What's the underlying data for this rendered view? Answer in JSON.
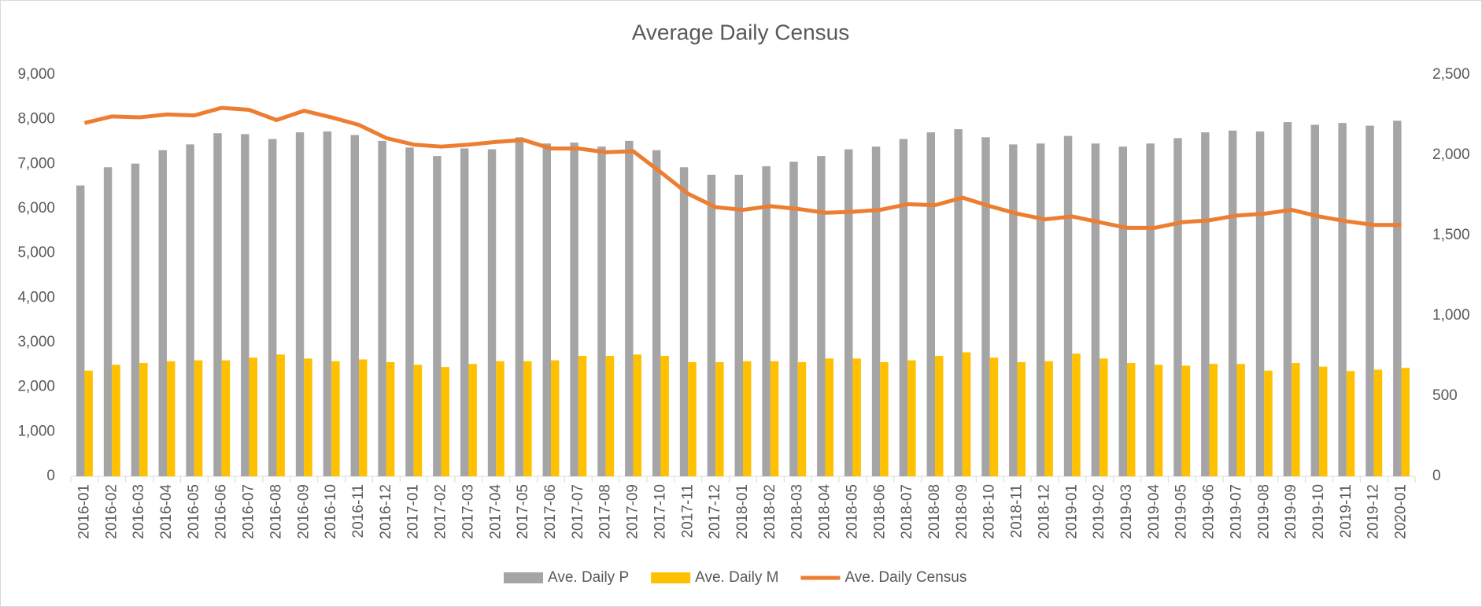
{
  "chart_data": {
    "type": "bar",
    "title": "Average Daily Census",
    "categories": [
      "2016-01",
      "2016-02",
      "2016-03",
      "2016-04",
      "2016-05",
      "2016-06",
      "2016-07",
      "2016-08",
      "2016-09",
      "2016-10",
      "2016-11",
      "2016-12",
      "2017-01",
      "2017-02",
      "2017-03",
      "2017-04",
      "2017-05",
      "2017-06",
      "2017-07",
      "2017-08",
      "2017-09",
      "2017-10",
      "2017-11",
      "2017-12",
      "2018-01",
      "2018-02",
      "2018-03",
      "2018-04",
      "2018-05",
      "2018-06",
      "2018-07",
      "2018-08",
      "2018-09",
      "2018-10",
      "2018-11",
      "2018-12",
      "2019-01",
      "2019-02",
      "2019-03",
      "2019-04",
      "2019-05",
      "2019-06",
      "2019-07",
      "2019-08",
      "2019-09",
      "2019-10",
      "2019-11",
      "2019-12",
      "2020-01"
    ],
    "series": [
      {
        "name": "Ave. Daily P",
        "color": "#a5a5a5",
        "values": [
          6520,
          6930,
          7010,
          7310,
          7440,
          7690,
          7670,
          7560,
          7710,
          7730,
          7650,
          7520,
          7370,
          7180,
          7350,
          7330,
          7600,
          7460,
          7480,
          7390,
          7520,
          7310,
          6930,
          6760,
          6760,
          6950,
          7050,
          7180,
          7330,
          7390,
          7560,
          7710,
          7780,
          7600,
          7440,
          7460,
          7630,
          7460,
          7390,
          7460,
          7580,
          7710,
          7750,
          7730,
          7940,
          7880,
          7920,
          7860,
          7970
        ]
      },
      {
        "name": "Ave. Daily M",
        "color": "#ffc000",
        "values": [
          2370,
          2500,
          2540,
          2580,
          2600,
          2600,
          2660,
          2730,
          2640,
          2580,
          2620,
          2560,
          2500,
          2450,
          2520,
          2580,
          2580,
          2600,
          2700,
          2700,
          2730,
          2700,
          2560,
          2560,
          2580,
          2580,
          2560,
          2640,
          2640,
          2560,
          2600,
          2700,
          2780,
          2660,
          2560,
          2580,
          2750,
          2640,
          2540,
          2500,
          2480,
          2520,
          2520,
          2370,
          2540,
          2460,
          2360,
          2390,
          2430
        ]
      },
      {
        "name": "Ave. Daily Census",
        "color": "#ed7d31",
        "type": "line",
        "axis": "y2",
        "values": [
          2200,
          2241,
          2235,
          2253,
          2247,
          2294,
          2282,
          2218,
          2276,
          2235,
          2188,
          2106,
          2065,
          2053,
          2065,
          2082,
          2094,
          2041,
          2041,
          2018,
          2024,
          1894,
          1759,
          1676,
          1659,
          1682,
          1665,
          1641,
          1647,
          1659,
          1694,
          1688,
          1735,
          1682,
          1635,
          1600,
          1618,
          1582,
          1547,
          1547,
          1582,
          1594,
          1624,
          1635,
          1659,
          1618,
          1588,
          1565,
          1565
        ]
      }
    ],
    "ylim": [
      0,
      9000
    ],
    "yticks": [
      0,
      {
        "value": 1000,
        "label": "1,000"
      },
      {
        "value": 2000,
        "label": "2,000"
      },
      {
        "value": 3000,
        "label": "3,000"
      },
      {
        "value": 4000,
        "label": "4,000"
      },
      {
        "value": 5000,
        "label": "5,000"
      },
      {
        "value": 6000,
        "label": "6,000"
      },
      {
        "value": 7000,
        "label": "7,000"
      },
      {
        "value": 8000,
        "label": "8,000"
      },
      {
        "value": 9000,
        "label": "9,000"
      }
    ],
    "y2lim": [
      0,
      2500
    ],
    "y2ticks": [
      0,
      500,
      {
        "value": 1000,
        "label": "1,000"
      },
      {
        "value": 1500,
        "label": "1,500"
      },
      {
        "value": 2000,
        "label": "2,000"
      },
      {
        "value": 2500,
        "label": "2,500"
      }
    ],
    "legend": "bottom"
  }
}
